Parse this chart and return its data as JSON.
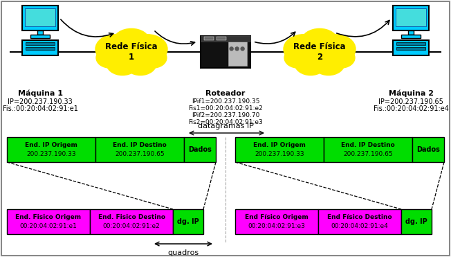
{
  "machine1_label": "Máquina 1",
  "machine1_ip": "IP=200.237.190.33",
  "machine1_fis": "Fis.:00:20:04:02:91:e1",
  "machine2_label": "Máquina 2",
  "machine2_ip": "IP=200.237.190.65",
  "machine2_fis": "Fis.:00:20:04:02:91:e4",
  "router_label": "Roteador",
  "router_ip1": "IPif1=200.237.190.35",
  "router_fis1": "Fis1=00:20:04:02:91:e2",
  "router_ip2": "IPif2=200.237.190.70",
  "router_fis2": "Fis2=00:20:04:02:91:e3",
  "cloud1_label": "Rede Física\n1",
  "cloud2_label": "Rede Física\n2",
  "datagramas_label": "datagramas IP",
  "quadros_label": "quadros",
  "frame1_ip_orig_label": "End. IP Origem",
  "frame1_ip_orig_val": "200.237.190.33",
  "frame1_ip_dest_label": "End. IP Destino",
  "frame1_ip_dest_val": "200.237.190.65",
  "frame1_dados": "Dados",
  "frame1_fis_orig_label": "End. Fisico Origem",
  "frame1_fis_orig_val": "00:20:04:02:91:e1",
  "frame1_fis_dest_label": "End. Fisico Destino",
  "frame1_fis_dest_val": "00:20:04:02:91:e2",
  "frame1_dg": "dg. IP",
  "frame2_ip_orig_label": "End. IP Origem",
  "frame2_ip_orig_val": "200.237.190.33",
  "frame2_ip_dest_label": "End. IP Destino",
  "frame2_ip_dest_val": "200.237.190.65",
  "frame2_dados": "Dados",
  "frame2_fis_orig_label": "End Físico Origem",
  "frame2_fis_orig_val": "00:20:04:02:91:e3",
  "frame2_fis_dest_label": "End Físico Destino",
  "frame2_fis_dest_val": "00:20:04:02:91:e4",
  "frame2_dg": "dg. IP",
  "green_color": "#00dd00",
  "magenta_color": "#ff00ff",
  "yellow_color": "#ffee00",
  "cyan_color": "#00ccff",
  "white_color": "#ffffff",
  "black_color": "#000000"
}
